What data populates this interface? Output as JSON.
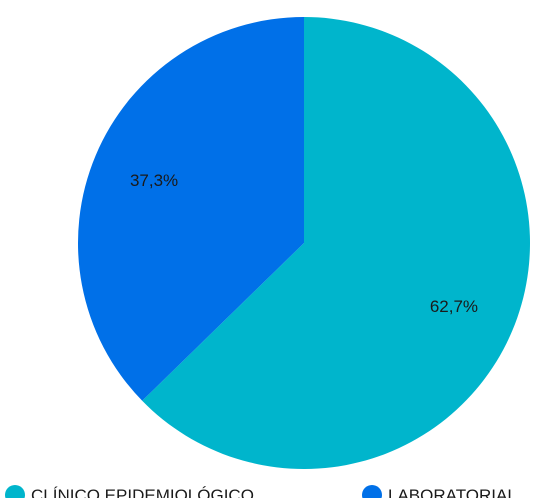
{
  "chart_data": {
    "type": "pie",
    "slices": [
      {
        "name": "CLÍNICO EPIDEMIOLÓGICO",
        "value": 62.7,
        "label": "62,7%",
        "color": "#00b5cc"
      },
      {
        "name": "LABORATORIAL",
        "value": 37.3,
        "label": "37,3%",
        "color": "#0070e8"
      }
    ],
    "legend_position": "bottom",
    "start_angle": "top",
    "direction": "clockwise"
  }
}
